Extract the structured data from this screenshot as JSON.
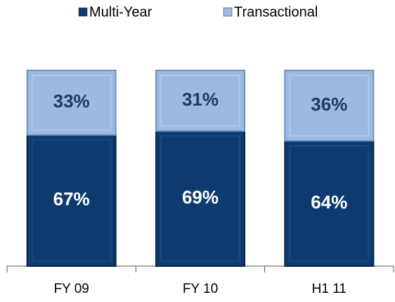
{
  "chart_data": {
    "type": "stacked_bar",
    "categories": [
      "FY 09",
      "FY 10",
      "H1 11"
    ],
    "series": [
      {
        "name": "Multi-Year",
        "color": "#0e3b6f",
        "values": [
          67,
          69,
          64
        ],
        "value_labels": [
          "67%",
          "69%",
          "64%"
        ]
      },
      {
        "name": "Transactional",
        "color": "#9cb9e1",
        "values": [
          33,
          31,
          36
        ],
        "value_labels": [
          "33%",
          "31%",
          "36%"
        ]
      }
    ],
    "legend": "top"
  }
}
